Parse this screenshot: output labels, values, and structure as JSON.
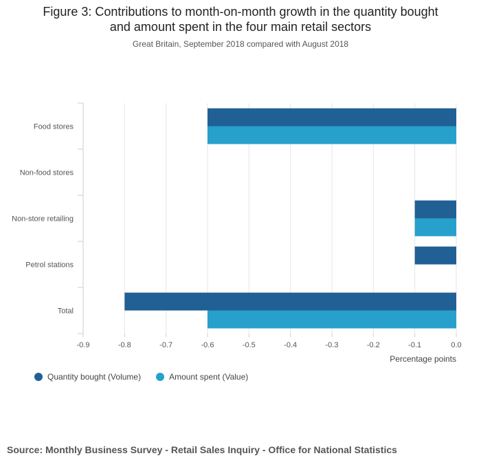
{
  "chart_data": {
    "type": "bar",
    "orientation": "horizontal",
    "title": "Figure 3: Contributions to month-on-month growth in the quantity bought and amount spent in the four main retail sectors",
    "title_line1": "Figure 3: Contributions to month-on-month growth in the quantity bought",
    "title_line2": "and amount spent in the four main retail sectors",
    "subtitle": "Great Britain, September 2018 compared with August 2018",
    "categories": [
      "Food stores",
      "Non-food stores",
      "Non-store retailing",
      "Petrol stations",
      "Total"
    ],
    "series": [
      {
        "name": "Quantity bought (Volume)",
        "color": "#206095",
        "values": [
          -0.6,
          0.0,
          -0.1,
          -0.1,
          -0.8
        ]
      },
      {
        "name": "Amount spent (Value)",
        "color": "#27a0cc",
        "values": [
          -0.6,
          0.0,
          -0.1,
          0.0,
          -0.6
        ]
      }
    ],
    "xlabel": "Percentage points",
    "xlim": [
      -0.9,
      0.0
    ],
    "xticks": [
      -0.9,
      -0.8,
      -0.7,
      -0.6,
      -0.5,
      -0.4,
      -0.3,
      -0.2,
      -0.1,
      0.0
    ],
    "xtick_labels": [
      "-0.9",
      "-0.8",
      "-0.7",
      "-0.6",
      "-0.5",
      "-0.4",
      "-0.3",
      "-0.2",
      "-0.1",
      "0.0"
    ],
    "grid": true,
    "legend_position": "bottom-left"
  },
  "source": "Source: Monthly Business Survey - Retail Sales Inquiry - Office for National Statistics"
}
